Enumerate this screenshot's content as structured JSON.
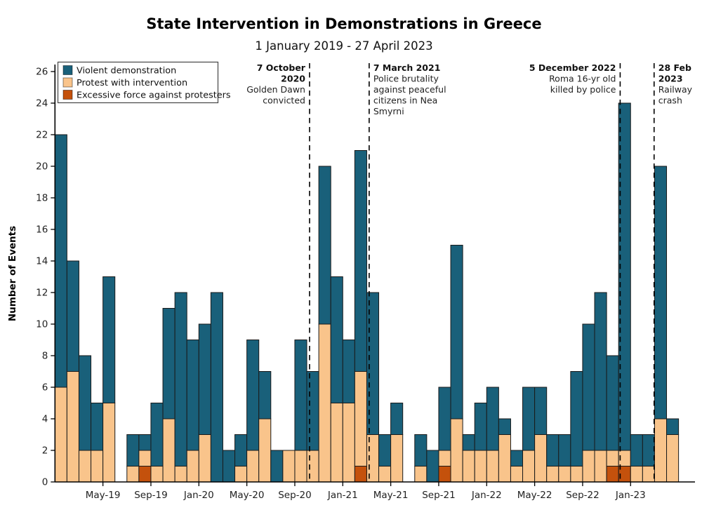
{
  "title": "State Intervention in Demonstrations in Greece",
  "subtitle": "1 January 2019 - 27 April 2023",
  "chart_data": {
    "type": "bar",
    "stacked": true,
    "title": "State Intervention in Demonstrations in Greece",
    "subtitle": "1 January 2019 - 27 April 2023",
    "ylabel": "Number of Events",
    "xlabel": "",
    "ylim": [
      0,
      26
    ],
    "ytick_step": 2,
    "grid": false,
    "legend_position": "top-left",
    "categories": [
      "Jan-19",
      "Feb-19",
      "Mar-19",
      "Apr-19",
      "May-19",
      "Jun-19",
      "Jul-19",
      "Aug-19",
      "Sep-19",
      "Oct-19",
      "Nov-19",
      "Dec-19",
      "Jan-20",
      "Feb-20",
      "Mar-20",
      "Apr-20",
      "May-20",
      "Jun-20",
      "Jul-20",
      "Aug-20",
      "Sep-20",
      "Oct-20",
      "Nov-20",
      "Dec-20",
      "Jan-21",
      "Feb-21",
      "Mar-21",
      "Apr-21",
      "May-21",
      "Jun-21",
      "Jul-21",
      "Aug-21",
      "Sep-21",
      "Oct-21",
      "Nov-21",
      "Dec-21",
      "Jan-22",
      "Feb-22",
      "Mar-22",
      "Apr-22",
      "May-22",
      "Jun-22",
      "Jul-22",
      "Aug-22",
      "Sep-22",
      "Oct-22",
      "Nov-22",
      "Dec-22",
      "Jan-23",
      "Feb-23",
      "Mar-23",
      "Apr-23"
    ],
    "stack_order_bottom_to_top": [
      2,
      1,
      0
    ],
    "series": [
      {
        "name": "Violent demonstration",
        "color": "#19607a",
        "values": [
          16,
          7,
          6,
          3,
          8,
          0,
          2,
          1,
          4,
          7,
          11,
          7,
          7,
          12,
          2,
          2,
          7,
          3,
          2,
          0,
          7,
          5,
          10,
          8,
          4,
          14,
          9,
          2,
          2,
          0,
          2,
          2,
          4,
          11,
          1,
          3,
          4,
          1,
          1,
          4,
          3,
          2,
          2,
          6,
          8,
          10,
          6,
          22,
          2,
          2,
          16,
          1
        ]
      },
      {
        "name": "Protest with intervention",
        "color": "#f9c48b",
        "values": [
          6,
          7,
          2,
          2,
          5,
          0,
          1,
          1,
          1,
          4,
          1,
          2,
          3,
          0,
          0,
          1,
          2,
          4,
          0,
          2,
          2,
          2,
          10,
          5,
          5,
          6,
          3,
          1,
          3,
          0,
          1,
          0,
          1,
          4,
          2,
          2,
          2,
          3,
          1,
          2,
          3,
          1,
          1,
          1,
          2,
          2,
          1,
          1,
          1,
          1,
          4,
          3
        ]
      },
      {
        "name": "Excessive force against protesters",
        "color": "#c4510c",
        "values": [
          0,
          0,
          0,
          0,
          0,
          0,
          0,
          1,
          0,
          0,
          0,
          0,
          0,
          0,
          0,
          0,
          0,
          0,
          0,
          0,
          0,
          0,
          0,
          0,
          0,
          1,
          0,
          0,
          0,
          0,
          0,
          0,
          1,
          0,
          0,
          0,
          0,
          0,
          0,
          0,
          0,
          0,
          0,
          0,
          0,
          0,
          1,
          1,
          0,
          0,
          0,
          0
        ]
      }
    ],
    "totals": [
      22,
      14,
      8,
      5,
      13,
      0,
      3,
      3,
      5,
      11,
      12,
      9,
      10,
      12,
      2,
      3,
      9,
      7,
      2,
      2,
      9,
      7,
      20,
      13,
      9,
      21,
      12,
      3,
      5,
      0,
      3,
      2,
      6,
      15,
      3,
      5,
      6,
      4,
      2,
      6,
      6,
      3,
      3,
      7,
      10,
      12,
      8,
      24,
      3,
      3,
      20,
      4
    ],
    "xticks": [
      {
        "label": "May-19",
        "index": 4
      },
      {
        "label": "Sep-19",
        "index": 8
      },
      {
        "label": "Jan-20",
        "index": 12
      },
      {
        "label": "May-20",
        "index": 16
      },
      {
        "label": "Sep-20",
        "index": 20
      },
      {
        "label": "Jan-21",
        "index": 24
      },
      {
        "label": "May-21",
        "index": 28
      },
      {
        "label": "Sep-21",
        "index": 32
      },
      {
        "label": "Jan-22",
        "index": 36
      },
      {
        "label": "May-22",
        "index": 40
      },
      {
        "label": "Sep-22",
        "index": 44
      },
      {
        "label": "Jan-23",
        "index": 48
      }
    ],
    "annotations": [
      {
        "id": "golden-dawn",
        "x_index": 21,
        "fraction": 0.23,
        "align": "right",
        "bold_lines": [
          "7 October",
          "2020"
        ],
        "lines": [
          "Golden Dawn",
          "convicted"
        ]
      },
      {
        "id": "nea-smyrni",
        "x_index": 26,
        "fraction": 0.2,
        "align": "left",
        "bold_lines": [
          "7 March 2021"
        ],
        "lines": [
          "Police brutality",
          "against peaceful",
          "citizens in Nea",
          "Smyrni"
        ]
      },
      {
        "id": "roma-killing",
        "x_index": 47,
        "fraction": 0.13,
        "align": "right",
        "bold_lines": [
          "5 December 2022"
        ],
        "lines": [
          "Roma 16-yr old",
          "killed by police"
        ]
      },
      {
        "id": "railway-crash",
        "x_index": 49,
        "fraction": 0.96,
        "align": "left",
        "bold_lines": [
          "28 Feb",
          "2023"
        ],
        "lines": [
          "Railway",
          "crash"
        ]
      }
    ],
    "colors": {
      "axis": "#000000",
      "bar_border": "#1a1a1a",
      "annotation_line": "#000000",
      "tick_label": "#222222"
    }
  }
}
